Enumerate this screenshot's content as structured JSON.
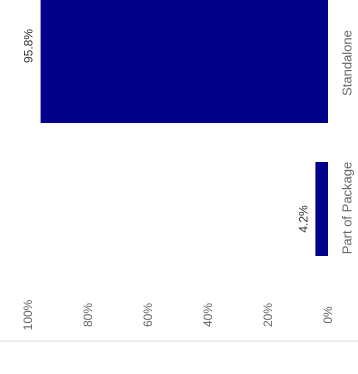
{
  "chart_data": {
    "type": "bar",
    "orientation": "horizontal-bars-rotated",
    "categories": [
      "Standalone",
      "Part of Package"
    ],
    "values": [
      95.8,
      4.2
    ],
    "data_labels": [
      "95.8%",
      "4.2%"
    ],
    "value_axis": {
      "range": [
        0,
        100
      ],
      "ticks": [
        0,
        20,
        40,
        60,
        80,
        100
      ],
      "tick_labels": [
        "0%",
        "20%",
        "40%",
        "60%",
        "80%",
        "100%"
      ]
    },
    "grid": false,
    "legend": "none",
    "colors": {
      "bar": "#00008b",
      "text": "#333333",
      "axis_label": "#666666",
      "baseline": "#dddddd"
    }
  }
}
